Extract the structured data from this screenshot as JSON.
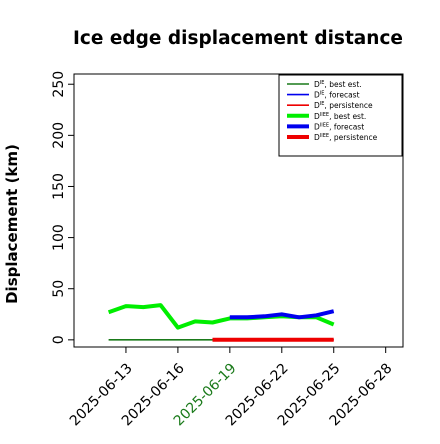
{
  "chart_data": {
    "type": "line",
    "title": "Ice edge displacement distance",
    "xlabel": "",
    "ylabel": "Displacement (km)",
    "ylim": [
      -7,
      260
    ],
    "xlim": [
      "2025-06-10",
      "2025-06-29"
    ],
    "yticks": [
      0,
      50,
      100,
      150,
      200,
      250
    ],
    "xticks": [
      "2025-06-13",
      "2025-06-16",
      "2025-06-19",
      "2025-06-22",
      "2025-06-25",
      "2025-06-28"
    ],
    "highlight_tick": "2025-06-19",
    "grid": false,
    "legend_position": "top-right",
    "series": [
      {
        "name": "D^IE, best est.",
        "legend_main": "D",
        "legend_sup": "IE",
        "legend_rest": ", best est.",
        "color": "#1a7a1a",
        "width": "thin",
        "x": [
          "2025-06-12",
          "2025-06-13",
          "2025-06-14",
          "2025-06-15",
          "2025-06-16",
          "2025-06-17",
          "2025-06-18",
          "2025-06-19"
        ],
        "y": [
          0,
          0,
          0,
          0,
          0,
          0,
          0,
          0
        ]
      },
      {
        "name": "D^IE, forecast",
        "legend_main": "D",
        "legend_sup": "IE",
        "legend_rest": ", forecast",
        "color": "#0000ee",
        "width": "thin",
        "x": [
          "2025-06-19",
          "2025-06-20",
          "2025-06-21",
          "2025-06-22",
          "2025-06-23",
          "2025-06-24",
          "2025-06-25"
        ],
        "y": [
          0,
          0,
          0,
          0,
          0,
          0,
          0
        ]
      },
      {
        "name": "D^IE, persistence",
        "legend_main": "D",
        "legend_sup": "IE",
        "legend_rest": ", persistence",
        "color": "#ee0000",
        "width": "thin",
        "x": [
          "2025-06-18",
          "2025-06-19",
          "2025-06-20",
          "2025-06-21",
          "2025-06-22",
          "2025-06-23",
          "2025-06-24",
          "2025-06-25"
        ],
        "y": [
          0,
          0,
          0,
          0,
          0,
          0,
          0,
          0
        ]
      },
      {
        "name": "D^IIEE, best est.",
        "legend_main": "D",
        "legend_sup": "IIEE",
        "legend_rest": ", best est.",
        "color": "#00ee00",
        "width": "thick",
        "x": [
          "2025-06-12",
          "2025-06-13",
          "2025-06-14",
          "2025-06-15",
          "2025-06-16",
          "2025-06-17",
          "2025-06-18",
          "2025-06-19",
          "2025-06-20",
          "2025-06-21",
          "2025-06-22",
          "2025-06-23",
          "2025-06-24",
          "2025-06-25"
        ],
        "y": [
          27,
          33,
          32,
          34,
          12,
          18,
          17,
          21,
          21,
          22,
          23,
          22,
          22,
          15
        ]
      },
      {
        "name": "D^IIEE, forecast",
        "legend_main": "D",
        "legend_sup": "IIEE",
        "legend_rest": ", forecast",
        "color": "#0000ee",
        "width": "thick",
        "x": [
          "2025-06-19",
          "2025-06-20",
          "2025-06-21",
          "2025-06-22",
          "2025-06-23",
          "2025-06-24",
          "2025-06-25"
        ],
        "y": [
          22,
          22,
          23,
          25,
          22,
          24,
          28
        ]
      },
      {
        "name": "D^IIEE, persistence",
        "legend_main": "D",
        "legend_sup": "IIEE",
        "legend_rest": ", persistence",
        "color": "#ee0000",
        "width": "thick",
        "x": [
          "2025-06-18",
          "2025-06-19",
          "2025-06-20",
          "2025-06-21",
          "2025-06-22",
          "2025-06-23",
          "2025-06-24",
          "2025-06-25"
        ],
        "y": [
          0,
          0,
          0,
          0,
          0,
          0,
          0,
          0
        ]
      }
    ]
  }
}
